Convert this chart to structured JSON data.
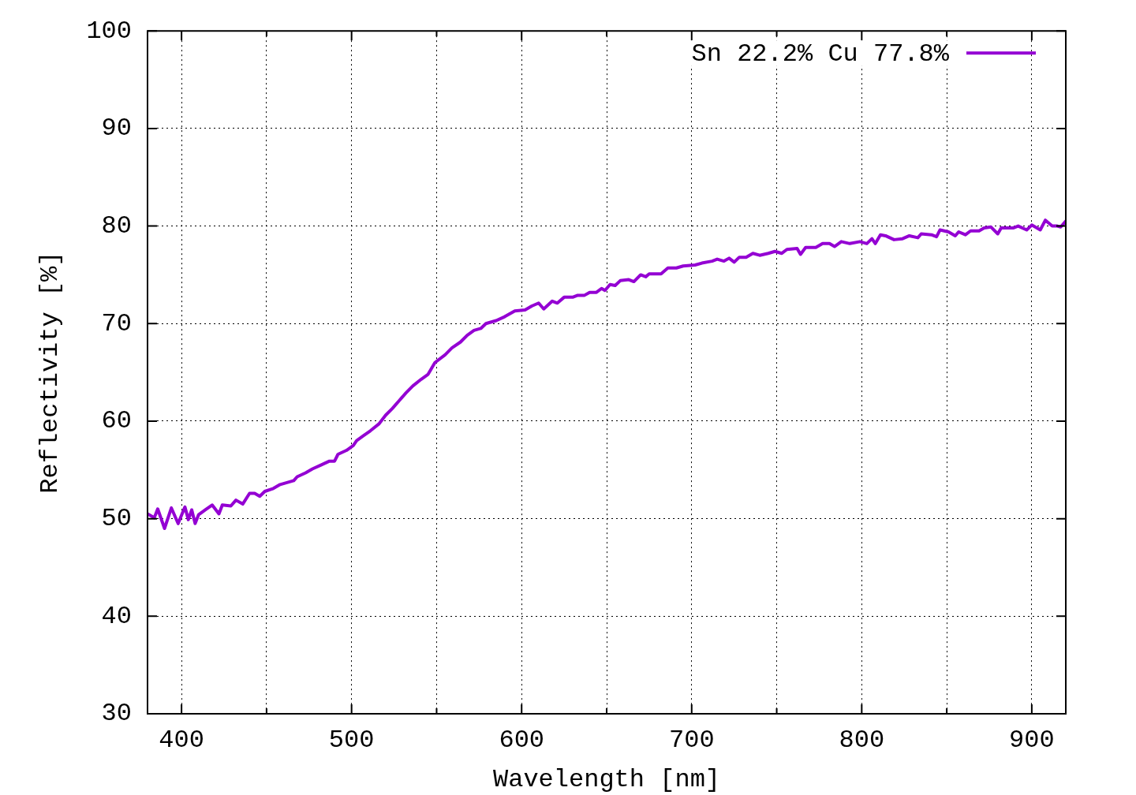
{
  "chart_data": {
    "type": "line",
    "xlabel": "Wavelength [nm]",
    "ylabel": "Reflectivity [%]",
    "x": [
      380,
      384,
      386,
      390,
      394,
      398,
      402,
      404,
      406,
      408,
      410,
      414,
      418,
      422,
      424,
      429,
      432,
      436,
      440,
      443,
      446,
      449,
      454,
      458,
      462,
      466,
      468,
      473,
      477,
      482,
      487,
      490,
      492,
      497,
      501,
      503,
      507,
      511,
      516,
      520,
      524,
      528,
      532,
      536,
      541,
      545,
      549,
      555,
      559,
      564,
      568,
      572,
      576,
      579,
      585,
      590,
      596,
      602,
      606,
      610,
      613,
      618,
      621,
      625,
      630,
      633,
      637,
      640,
      644,
      647,
      649,
      652,
      655,
      658,
      663,
      666,
      670,
      673,
      675,
      682,
      686,
      691,
      695,
      702,
      706,
      712,
      715,
      719,
      722,
      725,
      728,
      732,
      736,
      740,
      745,
      749,
      753,
      756,
      762,
      764,
      767,
      773,
      777,
      781,
      784,
      788,
      793,
      799,
      803,
      806,
      808,
      811,
      814,
      819,
      824,
      828,
      833,
      835,
      841,
      844,
      846,
      851,
      855,
      857,
      861,
      864,
      869,
      872,
      876,
      880,
      882,
      889,
      892,
      897,
      900,
      905,
      908,
      912,
      915,
      917,
      920
    ],
    "series": [
      {
        "name": "Sn 22.2% Cu 77.8%",
        "color": "#9400d3",
        "values": [
          50.5,
          50.1,
          51.0,
          49.0,
          51.1,
          49.5,
          51.2,
          49.9,
          50.9,
          49.5,
          50.4,
          50.9,
          51.4,
          50.5,
          51.4,
          51.3,
          51.9,
          51.5,
          52.6,
          52.6,
          52.3,
          52.8,
          53.1,
          53.5,
          53.7,
          53.9,
          54.3,
          54.7,
          55.1,
          55.5,
          55.9,
          55.9,
          56.6,
          57.0,
          57.5,
          58.0,
          58.5,
          59.0,
          59.7,
          60.6,
          61.3,
          62.1,
          62.9,
          63.6,
          64.3,
          64.8,
          66.0,
          66.8,
          67.5,
          68.1,
          68.8,
          69.3,
          69.5,
          70.0,
          70.3,
          70.7,
          71.3,
          71.4,
          71.8,
          72.1,
          71.5,
          72.3,
          72.1,
          72.7,
          72.7,
          72.9,
          72.9,
          73.2,
          73.2,
          73.6,
          73.4,
          74.0,
          73.9,
          74.4,
          74.5,
          74.3,
          75.0,
          74.8,
          75.1,
          75.1,
          75.7,
          75.7,
          75.9,
          76.0,
          76.2,
          76.4,
          76.6,
          76.4,
          76.7,
          76.3,
          76.8,
          76.8,
          77.2,
          77.0,
          77.2,
          77.4,
          77.2,
          77.6,
          77.7,
          77.1,
          77.8,
          77.8,
          78.2,
          78.2,
          77.9,
          78.4,
          78.2,
          78.4,
          78.2,
          78.7,
          78.2,
          79.1,
          79.0,
          78.6,
          78.7,
          79.0,
          78.8,
          79.2,
          79.1,
          78.9,
          79.6,
          79.4,
          79.0,
          79.4,
          79.1,
          79.5,
          79.5,
          79.8,
          79.9,
          79.2,
          79.8,
          79.8,
          80.0,
          79.6,
          80.1,
          79.6,
          80.6,
          80.0,
          80.0,
          79.9,
          80.5
        ]
      }
    ],
    "xlim": [
      380,
      920
    ],
    "ylim": [
      30,
      100
    ],
    "xticks": [
      400,
      {
        "value": 450,
        "label": null
      },
      500,
      {
        "value": 550,
        "label": null
      },
      600,
      {
        "value": 650,
        "label": null
      },
      700,
      {
        "value": 750,
        "label": null
      },
      800,
      {
        "value": 850,
        "label": null
      },
      900
    ],
    "yticks": [
      30,
      40,
      50,
      60,
      70,
      80,
      90,
      100
    ],
    "grid": true,
    "legend": "top right",
    "marker": "none",
    "line_style": "solid"
  }
}
